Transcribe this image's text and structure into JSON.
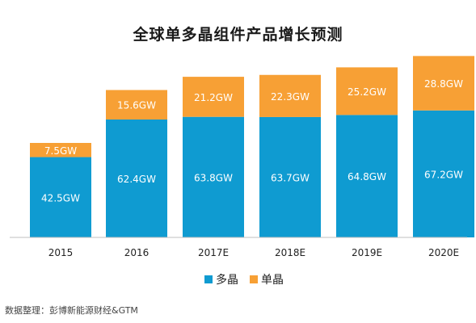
{
  "chart_data": {
    "type": "bar",
    "stacked": true,
    "title": "全球单多晶组件产品增长预测",
    "categories": [
      "2015",
      "2016",
      "2017E",
      "2018E",
      "2019E",
      "2020E"
    ],
    "series": [
      {
        "name": "多晶",
        "color": "#0f9bd1",
        "values": [
          42.5,
          62.4,
          63.8,
          63.7,
          64.8,
          67.2
        ],
        "labels": [
          "42.5GW",
          "62.4GW",
          "63.8GW",
          "63.7GW",
          "64.8GW",
          "67.2GW"
        ]
      },
      {
        "name": "单晶",
        "color": "#f7a035",
        "values": [
          7.5,
          15.6,
          21.2,
          22.3,
          25.2,
          28.8
        ],
        "labels": [
          "7.5GW",
          "15.6GW",
          "21.2GW",
          "22.3GW",
          "25.2GW",
          "28.8GW"
        ]
      }
    ],
    "xlabel": "",
    "ylabel": "",
    "grid": false,
    "legend_position": "bottom-center"
  },
  "source": "数据整理：彭博新能源财经&GTM"
}
